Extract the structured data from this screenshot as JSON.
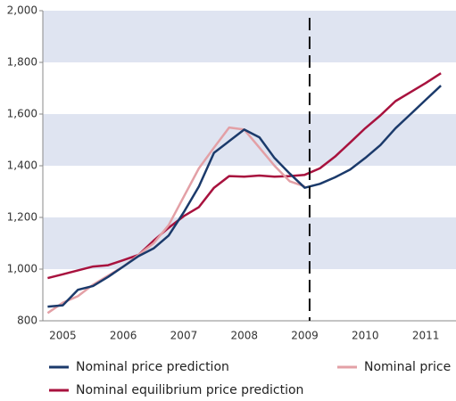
{
  "chart_data": {
    "type": "line",
    "x": [
      2005.25,
      2005.5,
      2005.75,
      2006,
      2006.25,
      2006.5,
      2006.75,
      2007,
      2007.25,
      2007.5,
      2007.75,
      2008,
      2008.25,
      2008.5,
      2008.75,
      2009,
      2009.25,
      2009.5,
      2009.75,
      2010,
      2010.25,
      2010.5,
      2010.75,
      2011,
      2011.25,
      2011.5,
      2011.75
    ],
    "series": [
      {
        "name": "Nominal price prediction",
        "color": "#1b3a6b",
        "values": [
          855,
          860,
          920,
          935,
          970,
          1010,
          1050,
          1080,
          1130,
          1220,
          1320,
          1450,
          1495,
          1540,
          1510,
          1430,
          1370,
          1315,
          1330,
          1355,
          1385,
          1430,
          1480,
          1545,
          1600,
          1655,
          1710
        ]
      },
      {
        "name": "Nominal price",
        "color": "#e3a0a6",
        "values": [
          830,
          870,
          895,
          940,
          975,
          1010,
          1055,
          1100,
          1170,
          1280,
          1390,
          1470,
          1548,
          1540,
          1470,
          1400,
          1340,
          1320,
          null,
          null,
          null,
          null,
          null,
          null,
          null,
          null,
          null
        ]
      },
      {
        "name": "Nominal equilibrium price prediction",
        "color": "#a8123e",
        "values": [
          965,
          980,
          995,
          1010,
          1015,
          1035,
          1055,
          1110,
          1160,
          1205,
          1240,
          1315,
          1360,
          1358,
          1362,
          1358,
          1360,
          1365,
          1390,
          1435,
          1490,
          1545,
          1595,
          1650,
          1685,
          1720,
          1758
        ]
      }
    ],
    "xlim": [
      2005.17,
      2012
    ],
    "xticks": [
      {
        "value": 2005.5,
        "label": "2005"
      },
      {
        "value": 2006.5,
        "label": "2006"
      },
      {
        "value": 2007.5,
        "label": "2007"
      },
      {
        "value": 2008.5,
        "label": "2008"
      },
      {
        "value": 2009.5,
        "label": "2009"
      },
      {
        "value": 2010.5,
        "label": "2010"
      },
      {
        "value": 2011.5,
        "label": "2011"
      }
    ],
    "ylim": [
      800,
      2000
    ],
    "yticks": [
      800,
      {
        "value": 1000,
        "label": "1,000"
      },
      {
        "value": 1200,
        "label": "1,200"
      },
      {
        "value": 1400,
        "label": "1,400"
      },
      {
        "value": 1600,
        "label": "1,600"
      },
      {
        "value": 1800,
        "label": "1,800"
      },
      {
        "value": 2000,
        "label": "2,000"
      }
    ],
    "bands": true,
    "band_color": "#dfe4f1",
    "divider_x": 2009.58
  }
}
